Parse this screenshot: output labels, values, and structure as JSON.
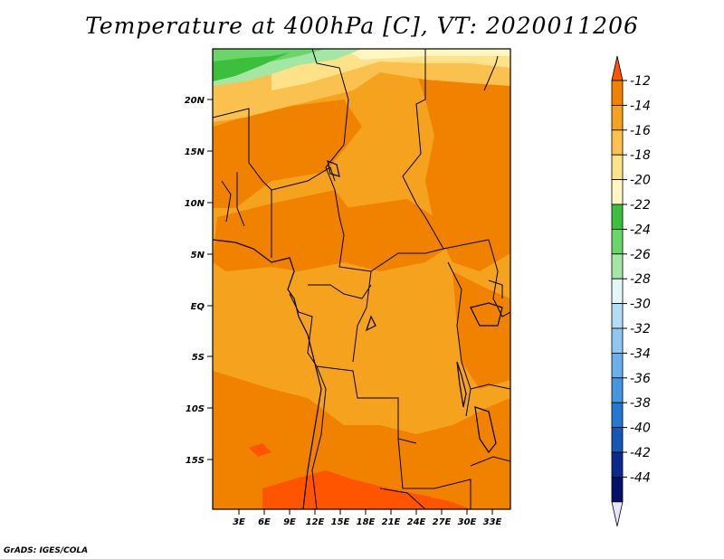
{
  "title": "Temperature at 400hPa [C], VT: 2020011206",
  "credit": "GrADS: IGES/COLA",
  "lat_ticks": [
    "20N",
    "15N",
    "10N",
    "5N",
    "EQ",
    "5S",
    "10S",
    "15S"
  ],
  "lon_ticks": [
    "3E",
    "6E",
    "9E",
    "12E",
    "15E",
    "18E",
    "21E",
    "24E",
    "27E",
    "30E",
    "33E"
  ],
  "colorbar": {
    "labels": [
      "-12",
      "-14",
      "-16",
      "-18",
      "-20",
      "-22",
      "-24",
      "-26",
      "-28",
      "-30",
      "-32",
      "-34",
      "-36",
      "-38",
      "-40",
      "-42",
      "-44"
    ],
    "colors": [
      "#ff5500",
      "#f08200",
      "#f5a21e",
      "#fac14f",
      "#fde28a",
      "#fff6c2",
      "#3cbf3c",
      "#6ad56a",
      "#a4e6a4",
      "#e3f6f8",
      "#b5dcf5",
      "#8fc7f0",
      "#69b0ea",
      "#4496e0",
      "#2478d2",
      "#1558b5",
      "#0a2a8c",
      "#060f6a",
      "#e6e6fa"
    ]
  },
  "legend_colors": {
    "land_dominant": "#f5a21e",
    "warm": "#f08200",
    "warmest": "#ff5500",
    "cool": "#fac14f",
    "green": "#3cbf3c"
  }
}
